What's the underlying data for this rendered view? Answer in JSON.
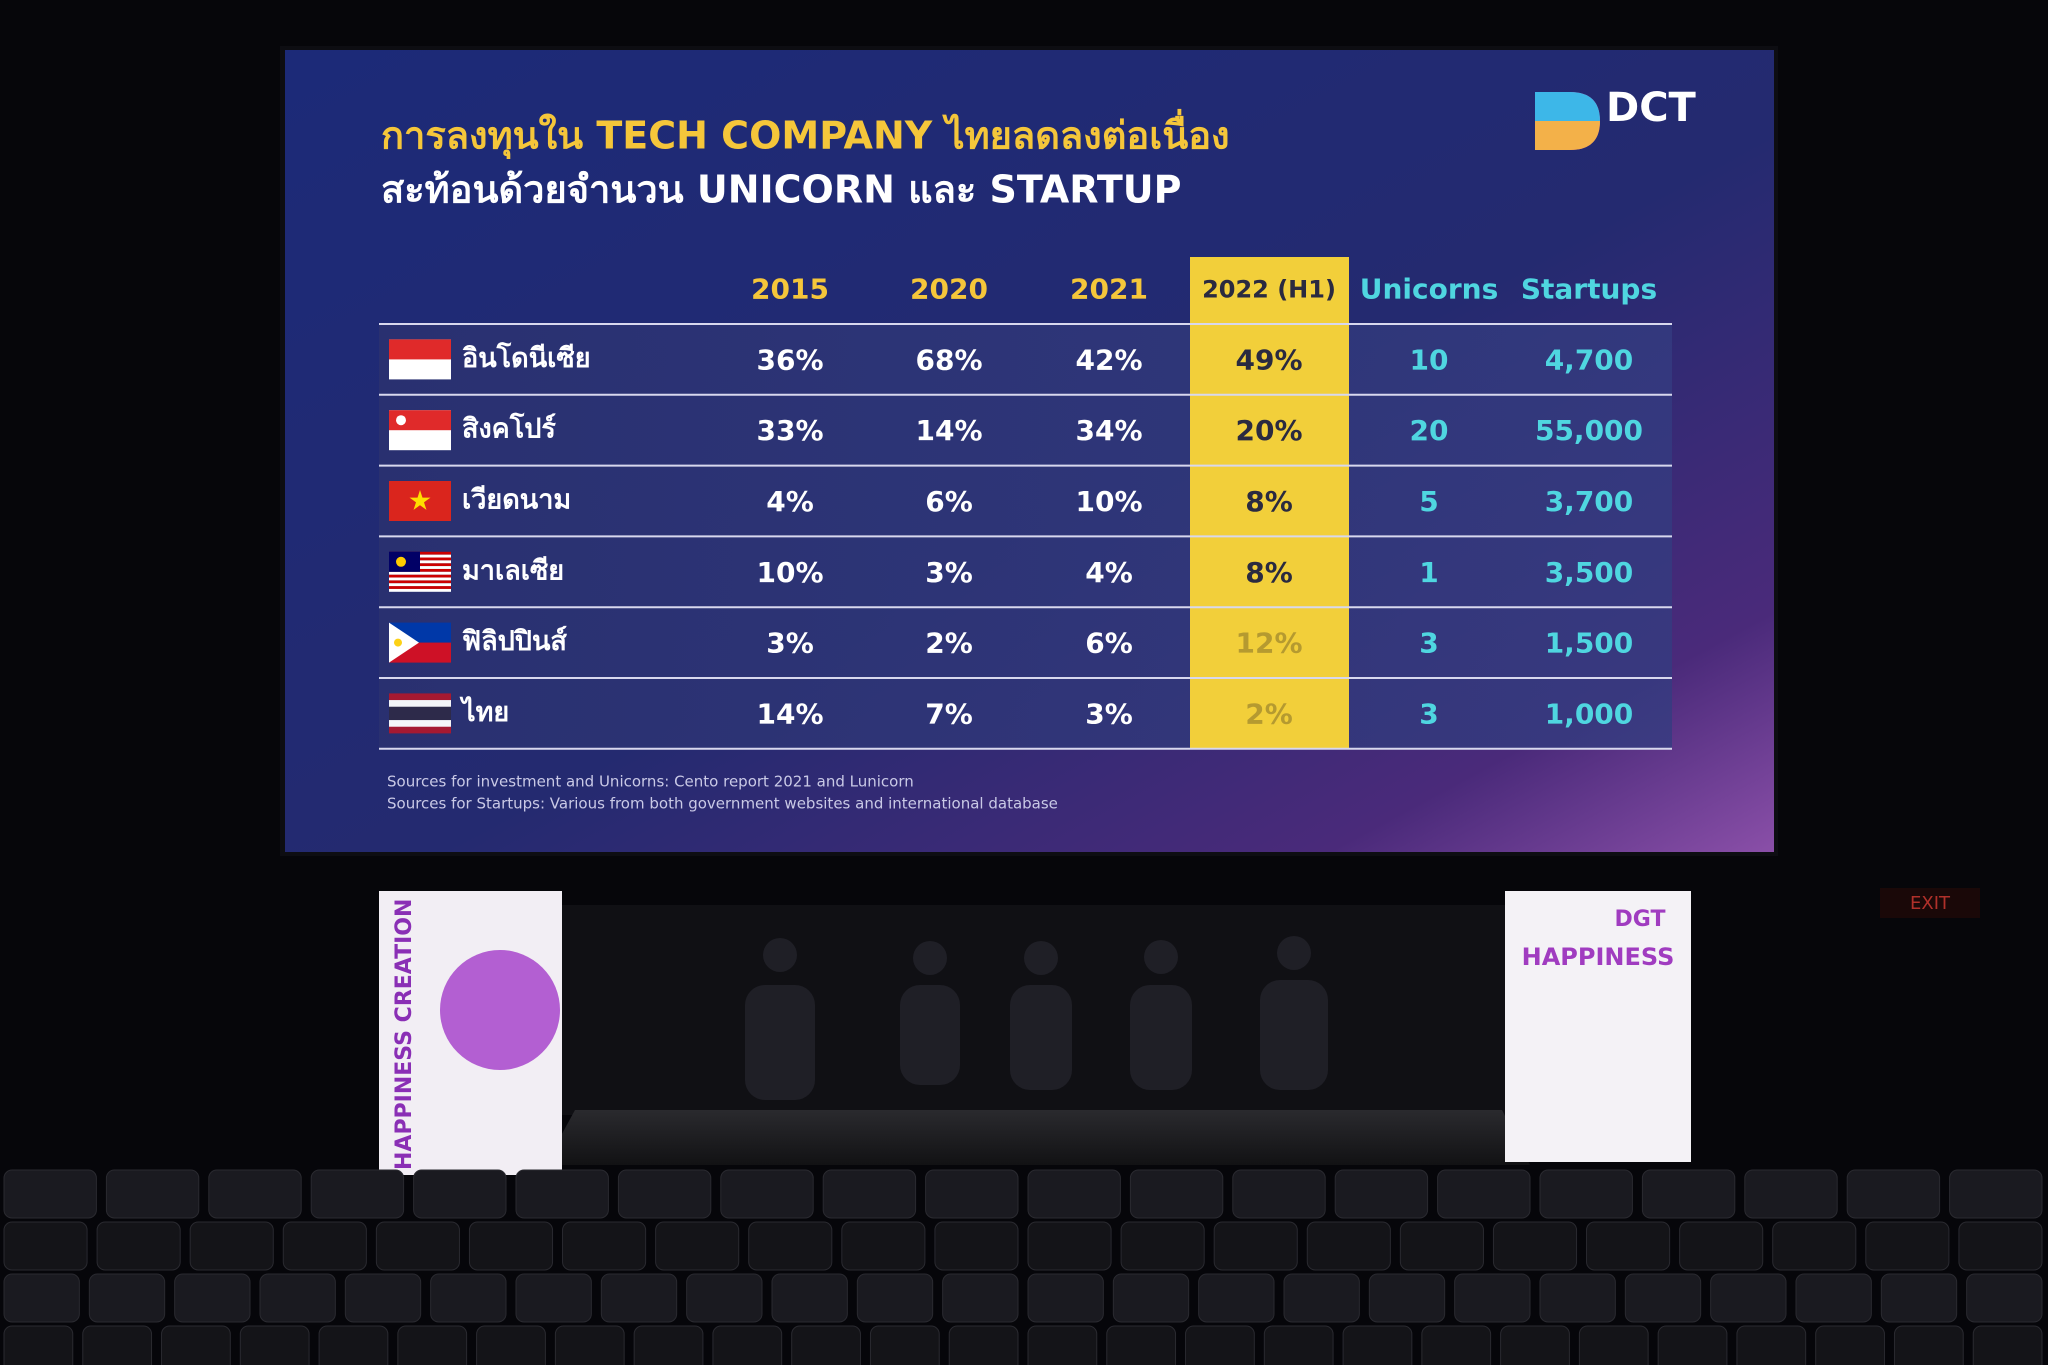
{
  "slide": {
    "title": [
      "การลงทุนใน TECH COMPANY ไทยลดลงต่อเนื่อง",
      "สะท้อนด้วยจำนวน UNICORN และ STARTUP"
    ],
    "logo": "DCT"
  },
  "table": {
    "columns": [
      "2015",
      "2020",
      "2021",
      "2022 (H1)",
      "Unicorns",
      "Startups"
    ],
    "rows": [
      {
        "country": "อินโดนีเซีย",
        "cells": [
          "36%",
          "68%",
          "42%",
          "49%",
          "10",
          "4,700"
        ]
      },
      {
        "country": "สิงคโปร์",
        "cells": [
          "33%",
          "14%",
          "34%",
          "20%",
          "20",
          "55,000"
        ]
      },
      {
        "country": "เวียดนาม",
        "cells": [
          "4%",
          "6%",
          "10%",
          "8%",
          "5",
          "3,700"
        ]
      },
      {
        "country": "มาเลเซีย",
        "cells": [
          "10%",
          "3%",
          "4%",
          "8%",
          "1",
          "3,500"
        ]
      },
      {
        "country": "ฟิลิปปินส์",
        "cells": [
          "3%",
          "2%",
          "6%",
          "12%",
          "3",
          "1,500"
        ]
      },
      {
        "country": "ไทย",
        "cells": [
          "14%",
          "7%",
          "3%",
          "2%",
          "3",
          "1,000"
        ]
      }
    ]
  },
  "sources": [
    "Sources for investment and Unicorns: Cento report 2021 and Lunicorn",
    "Sources for Startups: Various from both government websites and international database"
  ],
  "stage": {
    "left_banner": "HAPPINESS CREATION",
    "right_banner_logo": "DGT",
    "right_banner": "HAPPINESS",
    "exit_sign": "EXIT"
  }
}
